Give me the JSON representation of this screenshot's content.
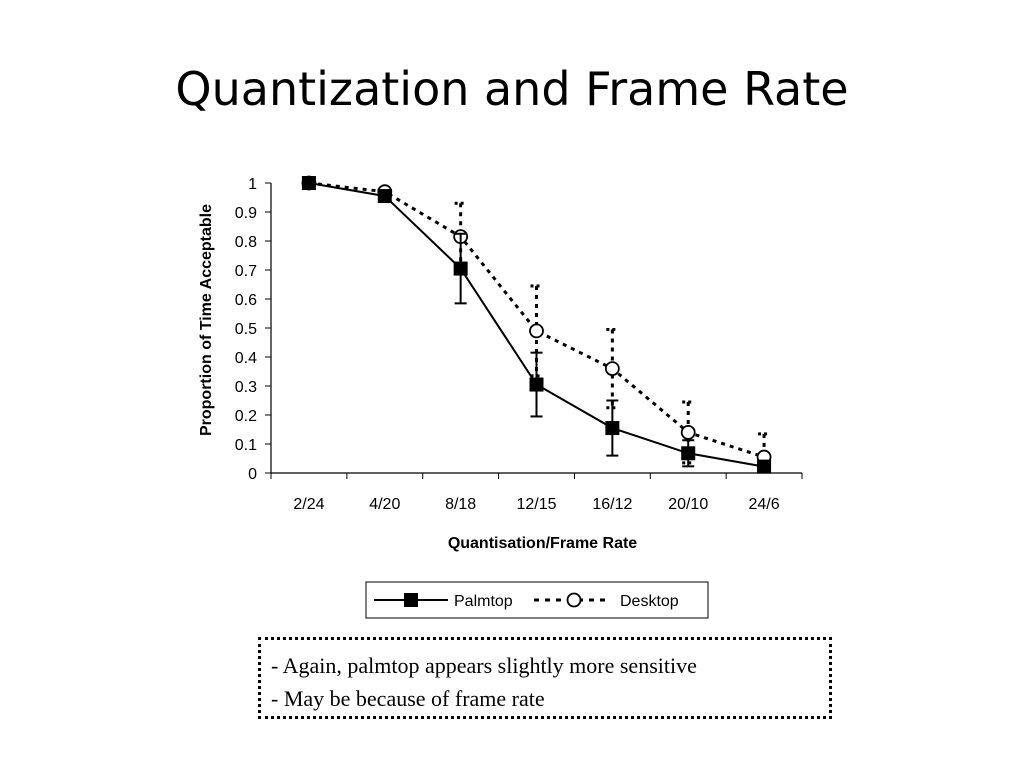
{
  "slide": {
    "title": "Quantization and Frame Rate",
    "notes": [
      "- Again, palmtop appears slightly more sensitive",
      "- May be because of frame rate"
    ]
  },
  "chart_data": {
    "type": "line",
    "title": "",
    "xlabel": "Quantisation/Frame Rate",
    "ylabel": "Proportion of Time Acceptable",
    "categories": [
      "2/24",
      "4/20",
      "8/18",
      "12/15",
      "16/12",
      "20/10",
      "24/6"
    ],
    "ylim": [
      0,
      1
    ],
    "yticks": [
      "0",
      "0.1",
      "0.2",
      "0.3",
      "0.4",
      "0.5",
      "0.6",
      "0.7",
      "0.8",
      "0.9",
      "1"
    ],
    "grid": false,
    "legend_position": "bottom",
    "series": [
      {
        "name": "Palmtop",
        "values": [
          1.0,
          0.955,
          0.705,
          0.305,
          0.155,
          0.068,
          0.022
        ],
        "error": [
          0,
          0,
          0.12,
          0.11,
          0.095,
          0.045,
          0.0
        ],
        "marker": "filled-square",
        "line_style": "solid",
        "color": "#000000"
      },
      {
        "name": "Desktop",
        "values": [
          1.0,
          0.97,
          0.815,
          0.49,
          0.36,
          0.14,
          0.055
        ],
        "error": [
          0,
          0.01,
          0.115,
          0.155,
          0.135,
          0.105,
          0.08
        ],
        "marker": "open-circle",
        "line_style": "dotted",
        "color": "#000000"
      }
    ]
  }
}
